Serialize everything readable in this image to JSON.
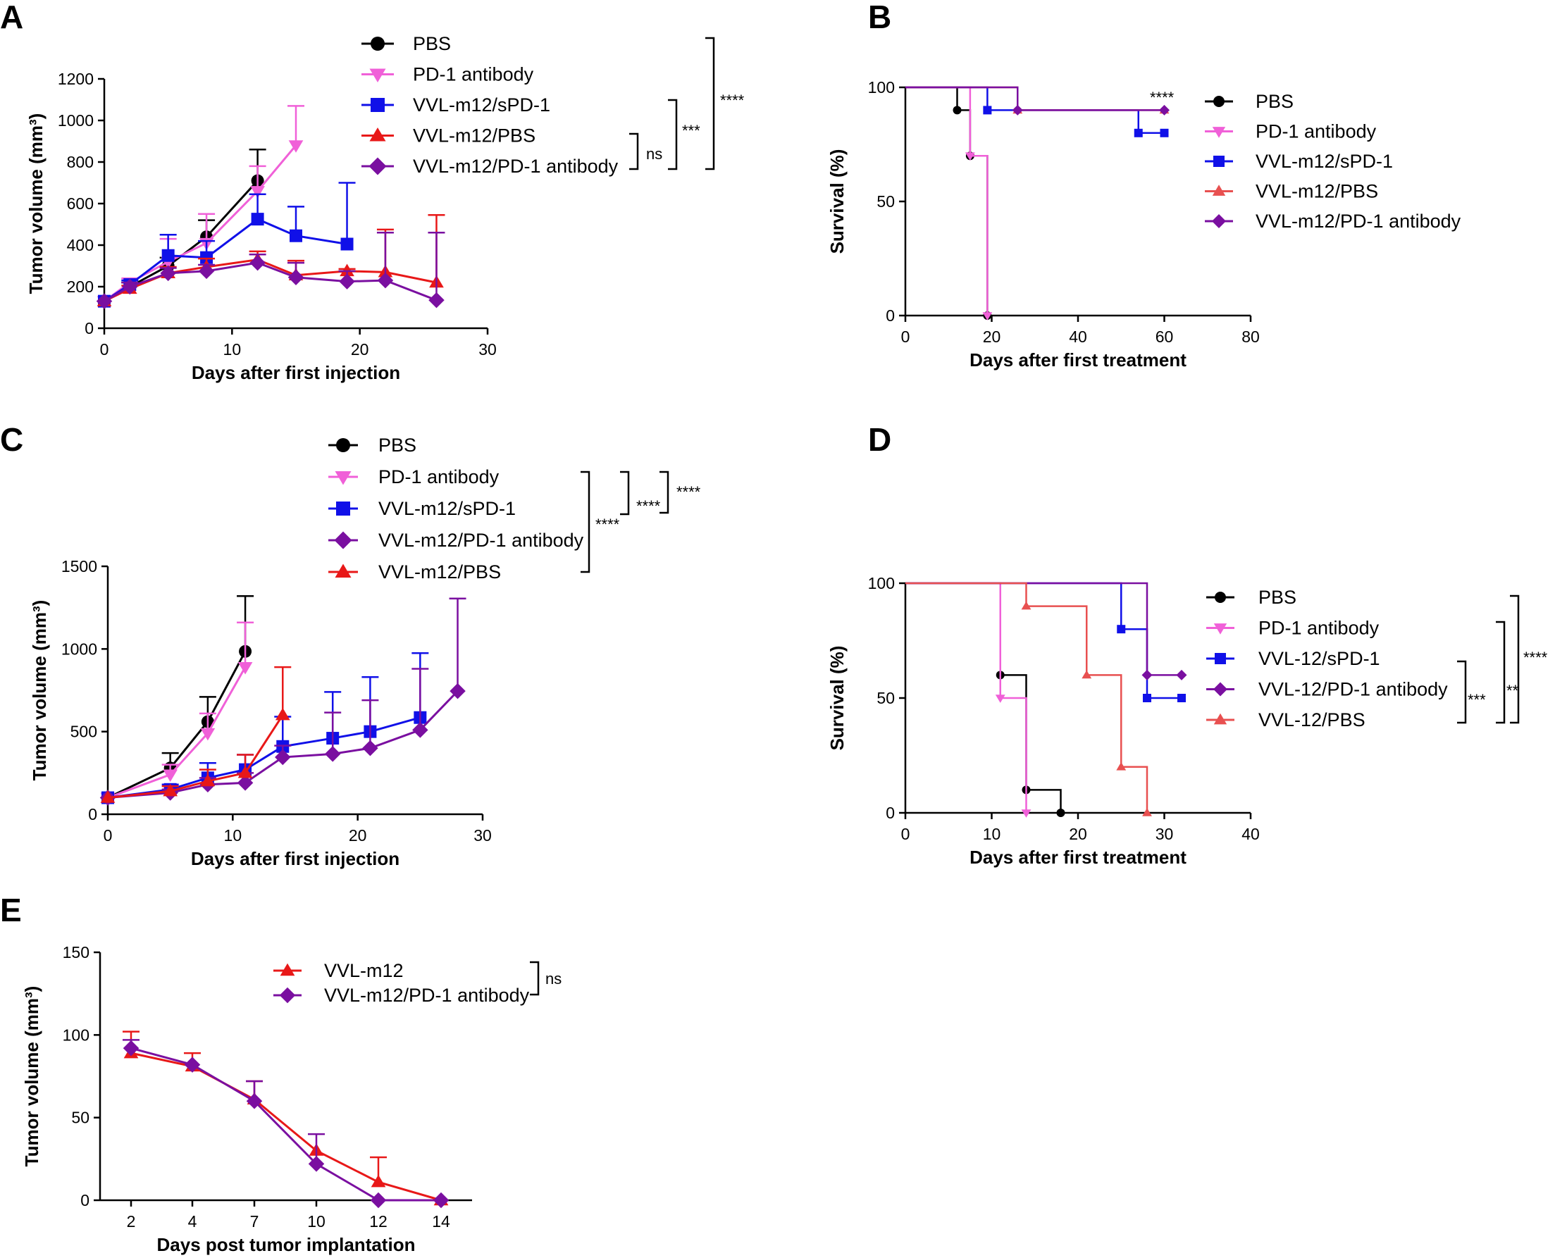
{
  "chart_data": [
    {
      "panel": "A",
      "type": "line",
      "xlabel": "Days after first injection",
      "ylabel": "Tumor volume (mm³)",
      "xlim": [
        0,
        30
      ],
      "ylim": [
        0,
        1200
      ],
      "xticks": [
        "0",
        "10",
        "20",
        "30"
      ],
      "yticks": [
        "0",
        "200",
        "400",
        "600",
        "800",
        "1000",
        "1200"
      ],
      "series": [
        {
          "name": "PBS",
          "color": "#000000",
          "marker": "circle",
          "x": [
            0,
            2,
            5,
            8,
            12
          ],
          "values": [
            130,
            200,
            300,
            440,
            710
          ],
          "err": [
            0,
            20,
            40,
            80,
            150
          ]
        },
        {
          "name": "PD-1 antibody",
          "color": "#f060d8",
          "marker": "tri-down",
          "x": [
            0,
            2,
            5,
            8,
            12,
            15
          ],
          "values": [
            130,
            220,
            320,
            410,
            660,
            880
          ],
          "err": [
            0,
            20,
            110,
            140,
            120,
            190
          ]
        },
        {
          "name": "VVL-m12/sPD-1",
          "color": "#1010e8",
          "marker": "square",
          "x": [
            0,
            2,
            5,
            8,
            12,
            15,
            19
          ],
          "values": [
            130,
            210,
            350,
            340,
            525,
            445,
            405
          ],
          "err": [
            0,
            20,
            100,
            80,
            120,
            140,
            295
          ]
        },
        {
          "name": "VVL-m12/PBS",
          "color": "#e81818",
          "marker": "tri-up",
          "x": [
            0,
            2,
            5,
            8,
            12,
            15,
            19,
            22,
            26
          ],
          "values": [
            130,
            190,
            265,
            295,
            330,
            255,
            275,
            270,
            220
          ],
          "err": [
            0,
            15,
            30,
            40,
            40,
            70,
            10,
            205,
            325
          ]
        },
        {
          "name": "VVL-m12/PD-1 antibody",
          "color": "#7a0fa0",
          "marker": "diamond",
          "x": [
            0,
            2,
            5,
            8,
            12,
            15,
            19,
            22,
            26
          ],
          "values": [
            130,
            200,
            265,
            275,
            315,
            245,
            225,
            230,
            135
          ],
          "err": [
            0,
            20,
            25,
            30,
            40,
            70,
            50,
            230,
            325
          ]
        }
      ],
      "significance": [
        {
          "label": "ns"
        },
        {
          "label": "***"
        },
        {
          "label": "****"
        }
      ]
    },
    {
      "panel": "B",
      "type": "line",
      "xlabel": "Days after first treatment",
      "ylabel": "Survival (%)",
      "xlim": [
        0,
        80
      ],
      "ylim": [
        0,
        100
      ],
      "xticks": [
        "0",
        "20",
        "40",
        "60",
        "80"
      ],
      "yticks": [
        "0",
        "50",
        "100"
      ],
      "series": [
        {
          "name": "PBS",
          "color": "#000000",
          "marker": "circle",
          "x": [
            0,
            12,
            15,
            19
          ],
          "values": [
            100,
            90,
            70,
            0
          ]
        },
        {
          "name": "PD-1 antibody",
          "color": "#f060d8",
          "marker": "tri-down",
          "x": [
            0,
            15,
            19
          ],
          "values": [
            100,
            70,
            0
          ]
        },
        {
          "name": "VVL-m12/sPD-1",
          "color": "#1010e8",
          "marker": "square",
          "x": [
            0,
            19,
            54,
            60
          ],
          "values": [
            100,
            90,
            80,
            80
          ]
        },
        {
          "name": "VVL-m12/PBS",
          "color": "#e85050",
          "marker": "tri-up",
          "x": [
            0,
            26,
            60
          ],
          "values": [
            100,
            90,
            90
          ]
        },
        {
          "name": "VVL-m12/PD-1 antibody",
          "color": "#7a0fa0",
          "marker": "diamond",
          "x": [
            0,
            26,
            60
          ],
          "values": [
            100,
            90,
            90
          ]
        }
      ],
      "annotation": "****"
    },
    {
      "panel": "C",
      "type": "line",
      "xlabel": "Days after first injection",
      "ylabel": "Tumor volume (mm³)",
      "xlim": [
        0,
        30
      ],
      "ylim": [
        0,
        1500
      ],
      "xticks": [
        "0",
        "10",
        "20",
        "30"
      ],
      "yticks": [
        "0",
        "500",
        "1000",
        "1500"
      ],
      "series": [
        {
          "name": "PBS",
          "color": "#000000",
          "marker": "circle",
          "x": [
            0,
            5,
            8,
            11
          ],
          "values": [
            100,
            280,
            560,
            985
          ],
          "err": [
            0,
            90,
            150,
            335
          ]
        },
        {
          "name": "PD-1 antibody",
          "color": "#f060d8",
          "marker": "tri-down",
          "x": [
            0,
            5,
            8,
            11
          ],
          "values": [
            100,
            240,
            490,
            890
          ],
          "err": [
            0,
            60,
            120,
            270
          ]
        },
        {
          "name": "VVL-m12/sPD-1",
          "color": "#1010e8",
          "marker": "square",
          "x": [
            0,
            5,
            8,
            11,
            14,
            18,
            21,
            25
          ],
          "values": [
            100,
            150,
            220,
            270,
            410,
            460,
            500,
            585
          ],
          "err": [
            0,
            30,
            90,
            90,
            180,
            280,
            330,
            390
          ]
        },
        {
          "name": "VVL-m12/PD-1 antibody",
          "color": "#7a0fa0",
          "marker": "diamond",
          "x": [
            0,
            5,
            8,
            11,
            14,
            18,
            21,
            25,
            28
          ],
          "values": [
            100,
            130,
            180,
            190,
            345,
            365,
            400,
            510,
            745
          ],
          "err": [
            0,
            20,
            40,
            60,
            70,
            250,
            290,
            370,
            560
          ]
        },
        {
          "name": "VVL-m12/PBS",
          "color": "#e81818",
          "marker": "tri-up",
          "x": [
            0,
            5,
            8,
            11,
            14
          ],
          "values": [
            100,
            140,
            200,
            250,
            600
          ],
          "err": [
            0,
            30,
            70,
            110,
            290
          ]
        }
      ],
      "significance": [
        {
          "label": "****"
        },
        {
          "label": "****"
        },
        {
          "label": "****"
        }
      ]
    },
    {
      "panel": "D",
      "type": "line",
      "xlabel": "Days after first treatment",
      "ylabel": "Survival (%)",
      "xlim": [
        0,
        40
      ],
      "ylim": [
        0,
        100
      ],
      "xticks": [
        "0",
        "10",
        "20",
        "30",
        "40"
      ],
      "yticks": [
        "0",
        "50",
        "100"
      ],
      "series": [
        {
          "name": "PBS",
          "color": "#000000",
          "marker": "circle",
          "x": [
            0,
            11,
            14,
            18
          ],
          "values": [
            100,
            60,
            10,
            0
          ]
        },
        {
          "name": "PD-1 antibody",
          "color": "#f060d8",
          "marker": "tri-down",
          "x": [
            0,
            11,
            14
          ],
          "values": [
            100,
            50,
            0
          ]
        },
        {
          "name": "VVL-12/sPD-1",
          "color": "#1010e8",
          "marker": "square",
          "x": [
            0,
            25,
            28,
            32
          ],
          "values": [
            100,
            80,
            50,
            50
          ]
        },
        {
          "name": "VVL-12/PD-1 antibody",
          "color": "#7a0fa0",
          "marker": "diamond",
          "x": [
            0,
            28,
            32
          ],
          "values": [
            100,
            60,
            60
          ]
        },
        {
          "name": "VVL-12/PBS",
          "color": "#e85050",
          "marker": "tri-up",
          "x": [
            0,
            14,
            21,
            25,
            28
          ],
          "values": [
            100,
            90,
            60,
            20,
            0
          ]
        }
      ],
      "significance": [
        {
          "label": "***"
        },
        {
          "label": "**"
        },
        {
          "label": "****"
        }
      ]
    },
    {
      "panel": "E",
      "type": "line",
      "xlabel": "Days post tumor implantation",
      "ylabel": "Tumor volume (mm³)",
      "ylim": [
        0,
        150
      ],
      "categories": [
        "2",
        "4",
        "7",
        "10",
        "12",
        "14"
      ],
      "yticks": [
        "0",
        "50",
        "100",
        "150"
      ],
      "series": [
        {
          "name": "VVL-m12",
          "color": "#e81818",
          "marker": "tri-up",
          "values": [
            89,
            81,
            61,
            30,
            11,
            0
          ],
          "err": [
            13,
            8,
            11,
            0,
            15,
            0
          ]
        },
        {
          "name": "VVL-m12/PD-1 antibody",
          "color": "#7a0fa0",
          "marker": "diamond",
          "values": [
            92,
            82,
            60,
            22,
            0,
            0
          ],
          "err": [
            5,
            0,
            12,
            18,
            0,
            0
          ]
        }
      ],
      "significance": [
        {
          "label": "ns"
        }
      ]
    }
  ]
}
